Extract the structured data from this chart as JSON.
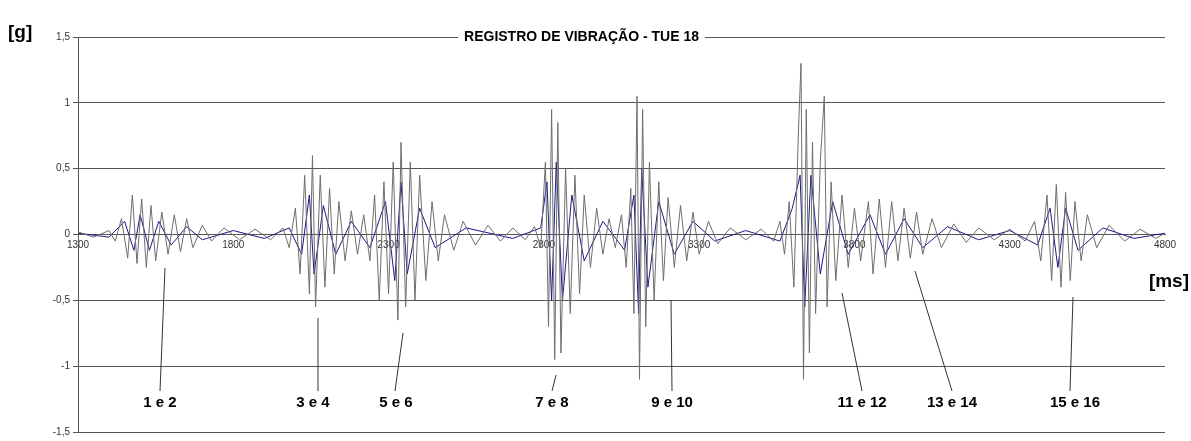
{
  "chart_data": {
    "type": "line",
    "title": "REGISTRO DE VIBRAÇÃO - TUE 18",
    "xlabel": "[ms]",
    "ylabel": "[g]",
    "xlim": [
      1300,
      4800
    ],
    "xticks": [
      1300,
      1800,
      2300,
      2800,
      3300,
      3800,
      4300,
      4800
    ],
    "ylim": [
      -1.5,
      1.5
    ],
    "yticks": [
      {
        "value": -1.5,
        "label": "-1,5"
      },
      -1,
      {
        "value": -0.5,
        "label": "-0,5"
      },
      0,
      {
        "value": 0.5,
        "label": "0,5"
      },
      1,
      {
        "value": 1.5,
        "label": "1,5"
      }
    ],
    "grid": "y",
    "legend": false,
    "marker": "none",
    "line_style": "solid",
    "series": [
      {
        "color": "#6e6e6e",
        "x": [
          1300,
          1350,
          1400,
          1420,
          1440,
          1460,
          1475,
          1490,
          1505,
          1520,
          1535,
          1550,
          1570,
          1590,
          1610,
          1630,
          1650,
          1670,
          1700,
          1730,
          1770,
          1820,
          1870,
          1920,
          1960,
          1980,
          2000,
          2015,
          2030,
          2045,
          2055,
          2065,
          2080,
          2095,
          2110,
          2125,
          2140,
          2160,
          2180,
          2200,
          2220,
          2240,
          2255,
          2270,
          2285,
          2300,
          2315,
          2330,
          2340,
          2355,
          2370,
          2385,
          2400,
          2420,
          2440,
          2460,
          2480,
          2510,
          2540,
          2580,
          2620,
          2660,
          2700,
          2740,
          2770,
          2790,
          2805,
          2815,
          2825,
          2835,
          2845,
          2855,
          2870,
          2885,
          2900,
          2915,
          2930,
          2950,
          2970,
          2990,
          3010,
          3030,
          3050,
          3065,
          3080,
          3090,
          3100,
          3108,
          3118,
          3128,
          3140,
          3155,
          3170,
          3185,
          3200,
          3220,
          3240,
          3260,
          3280,
          3300,
          3330,
          3360,
          3400,
          3450,
          3500,
          3540,
          3560,
          3575,
          3590,
          3605,
          3620,
          3628,
          3636,
          3645,
          3655,
          3665,
          3675,
          3690,
          3703,
          3712,
          3725,
          3740,
          3760,
          3780,
          3800,
          3820,
          3845,
          3860,
          3880,
          3900,
          3920,
          3940,
          3960,
          3980,
          4000,
          4020,
          4050,
          4080,
          4120,
          4160,
          4200,
          4250,
          4300,
          4350,
          4380,
          4400,
          4420,
          4435,
          4450,
          4465,
          4480,
          4495,
          4510,
          4530,
          4550,
          4580,
          4620,
          4670,
          4720,
          4770,
          4800
        ],
        "values": [
          0.02,
          -0.02,
          0.03,
          -0.05,
          0.12,
          -0.18,
          0.3,
          -0.22,
          0.27,
          -0.25,
          0.22,
          -0.2,
          0.17,
          -0.15,
          0.15,
          -0.13,
          0.12,
          -0.1,
          0.07,
          -0.05,
          0.05,
          -0.04,
          0.04,
          -0.04,
          0.05,
          -0.1,
          0.2,
          -0.3,
          0.45,
          -0.45,
          0.6,
          -0.55,
          0.45,
          -0.4,
          0.35,
          -0.3,
          0.25,
          -0.2,
          0.18,
          -0.15,
          0.15,
          -0.2,
          0.3,
          -0.5,
          0.4,
          -0.45,
          0.55,
          -0.65,
          0.7,
          -0.55,
          0.55,
          -0.5,
          0.45,
          -0.35,
          0.25,
          -0.2,
          0.15,
          -0.12,
          0.1,
          -0.08,
          0.07,
          -0.05,
          0.05,
          -0.04,
          0.06,
          -0.1,
          0.55,
          -0.7,
          0.95,
          -0.95,
          0.85,
          -0.9,
          0.5,
          -0.6,
          0.45,
          -0.45,
          0.3,
          -0.25,
          0.2,
          -0.15,
          0.12,
          -0.1,
          0.15,
          -0.25,
          0.35,
          -0.6,
          1.05,
          -1.1,
          0.95,
          -0.7,
          0.55,
          -0.5,
          0.4,
          -0.35,
          0.28,
          -0.25,
          0.22,
          -0.2,
          0.17,
          -0.15,
          0.1,
          -0.07,
          0.05,
          -0.04,
          0.04,
          -0.05,
          0.1,
          -0.15,
          0.25,
          -0.4,
          0.8,
          1.3,
          -1.1,
          0.95,
          -0.9,
          0.7,
          -0.6,
          0.55,
          1.05,
          -0.55,
          0.4,
          -0.35,
          0.3,
          -0.25,
          0.2,
          -0.2,
          0.25,
          -0.3,
          0.27,
          -0.25,
          0.25,
          -0.2,
          0.2,
          -0.18,
          0.17,
          -0.15,
          0.12,
          -0.1,
          0.08,
          -0.06,
          0.05,
          -0.04,
          0.04,
          -0.05,
          0.1,
          -0.2,
          0.3,
          -0.35,
          0.38,
          -0.4,
          0.32,
          -0.35,
          0.25,
          -0.2,
          0.15,
          -0.1,
          0.07,
          -0.05,
          0.04,
          -0.03,
          0.01
        ]
      },
      {
        "color": "#1a1a8c",
        "x": [
          1300,
          1400,
          1450,
          1480,
          1500,
          1530,
          1560,
          1600,
          1650,
          1700,
          1800,
          1900,
          1980,
          2020,
          2045,
          2060,
          2090,
          2130,
          2180,
          2240,
          2290,
          2320,
          2340,
          2360,
          2400,
          2450,
          2550,
          2700,
          2790,
          2810,
          2825,
          2840,
          2860,
          2890,
          2930,
          2990,
          3060,
          3090,
          3105,
          3115,
          3135,
          3170,
          3220,
          3280,
          3350,
          3450,
          3560,
          3600,
          3625,
          3640,
          3660,
          3690,
          3730,
          3780,
          3850,
          3900,
          3960,
          4020,
          4100,
          4200,
          4300,
          4390,
          4430,
          4455,
          4480,
          4520,
          4600,
          4700,
          4800
        ],
        "values": [
          0.01,
          -0.02,
          0.1,
          -0.12,
          0.15,
          -0.12,
          0.1,
          -0.08,
          0.06,
          -0.04,
          0.03,
          -0.03,
          0.05,
          -0.15,
          0.3,
          -0.3,
          0.22,
          -0.15,
          0.1,
          -0.1,
          0.25,
          -0.35,
          0.4,
          -0.3,
          0.2,
          -0.1,
          0.05,
          -0.03,
          0.05,
          0.4,
          -0.5,
          0.55,
          -0.5,
          0.3,
          -0.2,
          0.1,
          -0.12,
          0.3,
          -0.6,
          0.5,
          -0.4,
          0.25,
          -0.15,
          0.1,
          -0.05,
          0.03,
          -0.05,
          0.2,
          0.45,
          -0.55,
          0.45,
          -0.3,
          0.25,
          -0.15,
          0.15,
          -0.15,
          0.12,
          -0.1,
          0.06,
          -0.04,
          0.03,
          -0.08,
          0.2,
          -0.25,
          0.2,
          -0.12,
          0.05,
          -0.03,
          0.01
        ]
      }
    ],
    "annotations": [
      "1 e 2",
      "3 e 4",
      "5 e 6",
      "7 e 8",
      "9 e 10",
      "11 e 12",
      "13 e 14",
      "15 e 16"
    ]
  }
}
